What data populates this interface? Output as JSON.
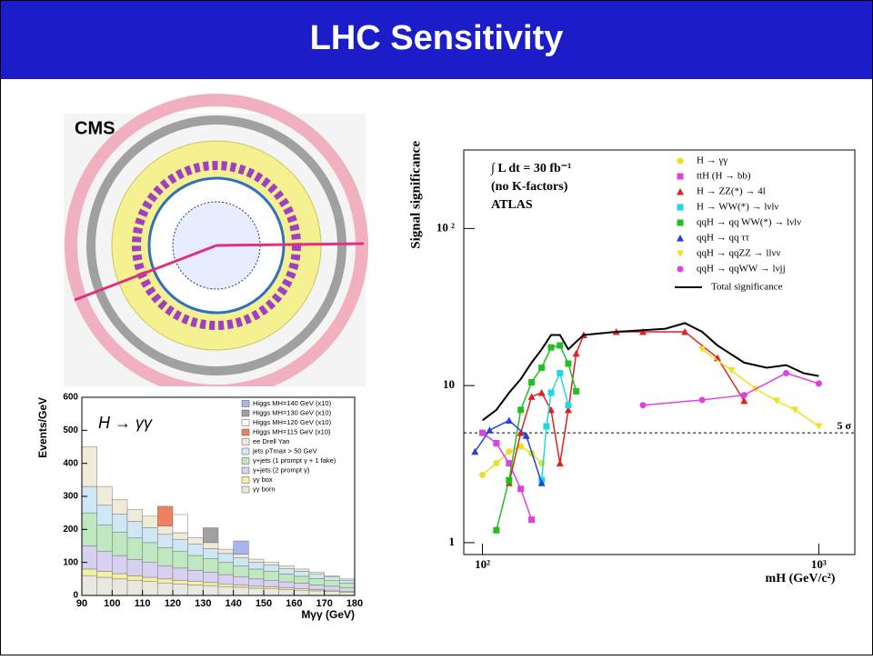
{
  "title": "LHC Sensitivity",
  "event_display_label": "CMS",
  "chart_data": [
    {
      "type": "histogram",
      "annotation": "H → γγ",
      "xlabel": "Mγγ (GeV)",
      "ylabel": "Events/GeV",
      "stacked": true,
      "legend": "upper right",
      "bins": [
        90,
        95,
        100,
        105,
        110,
        115,
        120,
        125,
        130,
        135,
        140,
        145,
        150,
        155,
        160,
        165,
        170,
        175,
        180
      ],
      "xlim": [
        90,
        180
      ],
      "ylim": [
        0,
        600
      ],
      "xticks": [
        90,
        100,
        110,
        120,
        130,
        140,
        150,
        160,
        170,
        180
      ],
      "yticks": [
        0,
        100,
        200,
        300,
        400,
        500,
        600
      ],
      "series": [
        {
          "name": "Higgs MH=140 GeV (x10)",
          "color": "#a8b4f0",
          "values": [
            0,
            0,
            0,
            0,
            0,
            0,
            0,
            0,
            0,
            0,
            40,
            0,
            0,
            0,
            0,
            0,
            0,
            0
          ]
        },
        {
          "name": "Higgs MH=130 GeV (x10)",
          "color": "#a0a0a0",
          "values": [
            0,
            0,
            0,
            0,
            0,
            0,
            0,
            0,
            45,
            0,
            0,
            0,
            0,
            0,
            0,
            0,
            0,
            0
          ]
        },
        {
          "name": "Higgs MH=120 GeV (x10)",
          "color": "#ffffff",
          "values": [
            0,
            0,
            0,
            0,
            0,
            0,
            55,
            0,
            0,
            0,
            0,
            0,
            0,
            0,
            0,
            0,
            0,
            0
          ]
        },
        {
          "name": "Higgs MH=115 GeV (x10)",
          "color": "#f08060",
          "values": [
            0,
            0,
            0,
            0,
            0,
            60,
            0,
            0,
            0,
            0,
            0,
            0,
            0,
            0,
            0,
            0,
            0,
            0
          ]
        },
        {
          "name": "ee Drell Yan",
          "color": "#f0ead8",
          "values": [
            120,
            57,
            44,
            36,
            35,
            25,
            20,
            20,
            18,
            13,
            11,
            9,
            8,
            8,
            7,
            6,
            4,
            4
          ]
        },
        {
          "name": "jets pTmax > 50 GeV",
          "color": "#cfe6f5",
          "values": [
            80,
            60,
            55,
            50,
            45,
            40,
            37,
            34,
            30,
            27,
            24,
            21,
            19,
            17,
            15,
            13,
            11,
            9
          ]
        },
        {
          "name": "γ+jets (1 prompt γ + 1 fake)",
          "color": "#bfe8c0",
          "values": [
            100,
            80,
            70,
            65,
            60,
            55,
            50,
            45,
            42,
            37,
            33,
            30,
            27,
            24,
            21,
            19,
            17,
            14
          ]
        },
        {
          "name": "γ+jets (2 prompt γ)",
          "color": "#d8d0f0",
          "values": [
            70,
            60,
            55,
            50,
            45,
            40,
            37,
            34,
            31,
            28,
            25,
            22,
            20,
            18,
            16,
            14,
            12,
            10
          ]
        },
        {
          "name": "γγ box",
          "color": "#f4f0a0",
          "values": [
            20,
            18,
            16,
            14,
            13,
            12,
            11,
            10,
            9,
            8,
            7,
            6,
            6,
            5,
            5,
            4,
            4,
            3
          ]
        },
        {
          "name": "γγ born",
          "color": "#e8e8e0",
          "values": [
            60,
            55,
            50,
            45,
            42,
            38,
            35,
            32,
            30,
            27,
            25,
            22,
            20,
            18,
            16,
            14,
            12,
            10
          ]
        }
      ]
    },
    {
      "type": "line",
      "xscale": "log",
      "yscale": "log",
      "xlabel": "mH (GeV/c²)",
      "ylabel": "Signal significance",
      "annotations": [
        "∫ L dt = 30 fb⁻¹",
        "(no K-factors)",
        "ATLAS"
      ],
      "reference_line": {
        "value": 5,
        "label": "5 σ"
      },
      "xlim": [
        88,
        1280
      ],
      "ylim": [
        0.84,
        316
      ],
      "xticks": [
        {
          "value": 100,
          "label": "10²"
        },
        {
          "value": 1000,
          "label": "10³"
        }
      ],
      "yticks": [
        1,
        10,
        {
          "value": 100,
          "label": "10 ²"
        }
      ],
      "legend": "upper right",
      "series": [
        {
          "name": "H → γγ",
          "color": "#e8e020",
          "marker": "circle",
          "x": [
            100,
            110,
            120,
            130,
            140,
            150
          ],
          "values": [
            2.7,
            3.2,
            3.8,
            4.1,
            3.7,
            3.2
          ]
        },
        {
          "name": "ttH (H → bb)",
          "color": "#e040e0",
          "marker": "square",
          "x": [
            100,
            110,
            120,
            130,
            140
          ],
          "values": [
            5,
            4.3,
            3.2,
            2.2,
            1.4
          ]
        },
        {
          "name": "H → ZZ(*) → 4l",
          "color": "#e02020",
          "marker": "triangle",
          "x": [
            120,
            130,
            140,
            150,
            160,
            170,
            180,
            190,
            200,
            250,
            300,
            400,
            500,
            600
          ],
          "values": [
            2.4,
            5,
            8.5,
            9,
            7,
            3.2,
            7,
            16,
            21,
            22,
            22,
            22,
            15,
            8
          ]
        },
        {
          "name": "H → WW(*) → lνlν",
          "color": "#20d8e0",
          "marker": "square",
          "x": [
            150,
            155,
            160,
            170,
            180
          ],
          "values": [
            2.5,
            5.5,
            9,
            12,
            7.5
          ]
        },
        {
          "name": "qqH → qq WW(*) → lνlν",
          "color": "#20c020",
          "marker": "square",
          "x": [
            110,
            120,
            130,
            140,
            150,
            160,
            170,
            180,
            190
          ],
          "values": [
            1.2,
            2.5,
            7,
            10.5,
            13,
            17.5,
            18,
            13.8,
            9.2
          ]
        },
        {
          "name": "qqH → qq ττ",
          "color": "#2040e0",
          "marker": "triangle",
          "x": [
            95,
            105,
            120,
            135,
            150
          ],
          "values": [
            3.8,
            5.2,
            6,
            4.8,
            2.4
          ]
        },
        {
          "name": "qqH → qqZZ → llνν",
          "color": "#f0e020",
          "marker": "triangle-down",
          "x": [
            450,
            550,
            650,
            750,
            850,
            1000
          ],
          "values": [
            17,
            12.5,
            9.5,
            8,
            7,
            5.5
          ]
        },
        {
          "name": "qqH → qqWW → lνjj",
          "color": "#e040e0",
          "marker": "circle",
          "x": [
            300,
            450,
            600,
            800,
            1000
          ],
          "values": [
            7.5,
            8.1,
            8.7,
            12,
            10.3
          ]
        },
        {
          "name": "Total significance",
          "color": "#000000",
          "marker": "none",
          "x": [
            100,
            110,
            120,
            130,
            140,
            150,
            160,
            170,
            180,
            190,
            200,
            250,
            300,
            350,
            400,
            450,
            500,
            600,
            700,
            800,
            900,
            1000
          ],
          "values": [
            6,
            7,
            9,
            11,
            14,
            17,
            21,
            21,
            17,
            19,
            21,
            22,
            22.5,
            23,
            25,
            22,
            18,
            14,
            13,
            13.5,
            12,
            11.5
          ]
        }
      ]
    }
  ]
}
